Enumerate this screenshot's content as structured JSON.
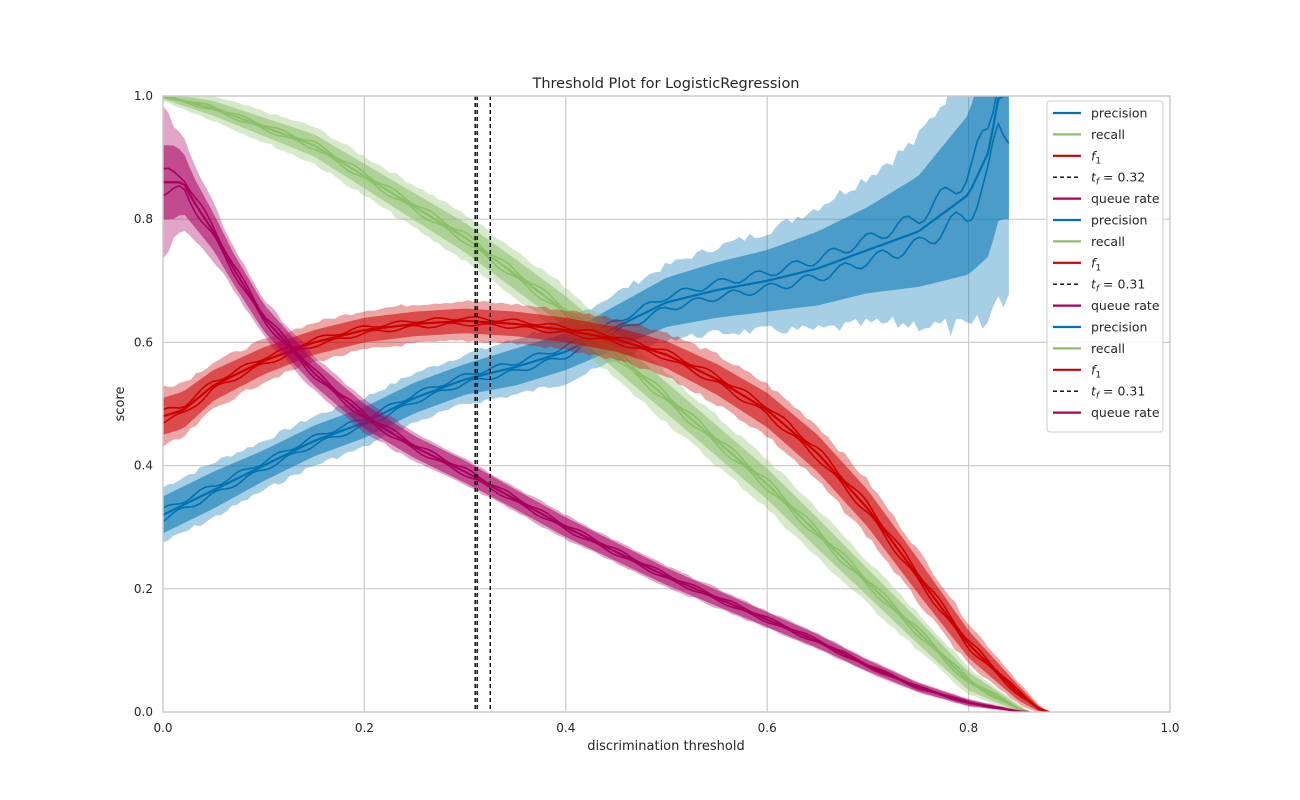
{
  "chart_data": {
    "type": "line",
    "title": "Threshold Plot for LogisticRegression",
    "xlabel": "discrimination threshold",
    "ylabel": "score",
    "xlim": [
      0.0,
      1.0
    ],
    "ylim": [
      0.0,
      1.0
    ],
    "grid": true,
    "legend_position": "top-right",
    "x_ticks": [
      "0.0",
      "0.2",
      "0.4",
      "0.6",
      "0.8",
      "1.0"
    ],
    "y_ticks": [
      "0.0",
      "0.2",
      "0.4",
      "0.6",
      "0.8",
      "1.0"
    ],
    "colors": {
      "precision": "#0072b2",
      "recall": "#8cc06a",
      "f1": "#cc0000",
      "queue_rate": "#a8005e",
      "threshold": "#000000"
    },
    "series": [
      {
        "name": "precision",
        "color": "#0072b2",
        "x": [
          0.0,
          0.05,
          0.1,
          0.15,
          0.2,
          0.25,
          0.3,
          0.35,
          0.4,
          0.45,
          0.5,
          0.55,
          0.6,
          0.65,
          0.7,
          0.75,
          0.8,
          0.82,
          0.83,
          0.84
        ],
        "y": [
          0.32,
          0.36,
          0.4,
          0.44,
          0.47,
          0.51,
          0.54,
          0.56,
          0.585,
          0.625,
          0.665,
          0.685,
          0.7,
          0.72,
          0.75,
          0.78,
          0.84,
          0.91,
          1.0,
          1.0
        ],
        "band_inner": [
          0.03,
          0.03,
          0.025,
          0.025,
          0.025,
          0.025,
          0.025,
          0.03,
          0.03,
          0.035,
          0.04,
          0.045,
          0.05,
          0.06,
          0.07,
          0.09,
          0.13,
          0.17,
          0.2,
          0.2
        ],
        "band_outer": [
          0.045,
          0.045,
          0.04,
          0.04,
          0.04,
          0.04,
          0.04,
          0.045,
          0.05,
          0.055,
          0.06,
          0.07,
          0.08,
          0.1,
          0.12,
          0.15,
          0.22,
          0.28,
          0.32,
          0.32
        ]
      },
      {
        "name": "recall",
        "color": "#8cc06a",
        "x": [
          0.0,
          0.05,
          0.1,
          0.15,
          0.2,
          0.25,
          0.3,
          0.35,
          0.4,
          0.45,
          0.5,
          0.55,
          0.6,
          0.65,
          0.7,
          0.75,
          0.8,
          0.85,
          0.86
        ],
        "y": [
          1.0,
          0.98,
          0.95,
          0.92,
          0.87,
          0.82,
          0.77,
          0.71,
          0.65,
          0.58,
          0.51,
          0.44,
          0.37,
          0.29,
          0.21,
          0.13,
          0.05,
          0.005,
          0.0
        ],
        "band_inner": [
          0.005,
          0.012,
          0.015,
          0.018,
          0.02,
          0.022,
          0.024,
          0.025,
          0.025,
          0.025,
          0.025,
          0.025,
          0.025,
          0.025,
          0.022,
          0.02,
          0.015,
          0.005,
          0.0
        ],
        "band_outer": [
          0.008,
          0.02,
          0.025,
          0.03,
          0.032,
          0.035,
          0.038,
          0.04,
          0.04,
          0.04,
          0.04,
          0.04,
          0.04,
          0.04,
          0.035,
          0.03,
          0.022,
          0.008,
          0.0
        ]
      },
      {
        "name": "f_1",
        "color": "#cc0000",
        "x": [
          0.0,
          0.02,
          0.05,
          0.1,
          0.15,
          0.2,
          0.25,
          0.3,
          0.35,
          0.4,
          0.45,
          0.5,
          0.55,
          0.6,
          0.65,
          0.7,
          0.75,
          0.8,
          0.85,
          0.87,
          0.88
        ],
        "y": [
          0.48,
          0.49,
          0.53,
          0.57,
          0.6,
          0.62,
          0.63,
          0.635,
          0.63,
          0.62,
          0.605,
          0.58,
          0.54,
          0.49,
          0.42,
          0.33,
          0.22,
          0.11,
          0.03,
          0.005,
          0.0
        ],
        "band_inner": [
          0.03,
          0.03,
          0.025,
          0.022,
          0.02,
          0.02,
          0.02,
          0.02,
          0.02,
          0.02,
          0.02,
          0.022,
          0.025,
          0.028,
          0.03,
          0.03,
          0.028,
          0.022,
          0.012,
          0.004,
          0.0
        ],
        "band_outer": [
          0.05,
          0.045,
          0.038,
          0.034,
          0.032,
          0.032,
          0.032,
          0.032,
          0.032,
          0.032,
          0.034,
          0.036,
          0.04,
          0.042,
          0.045,
          0.045,
          0.042,
          0.034,
          0.018,
          0.006,
          0.0
        ]
      },
      {
        "name": "queue rate",
        "color": "#a8005e",
        "x": [
          0.0,
          0.01,
          0.02,
          0.03,
          0.05,
          0.07,
          0.1,
          0.15,
          0.2,
          0.25,
          0.3,
          0.35,
          0.4,
          0.45,
          0.5,
          0.55,
          0.6,
          0.65,
          0.7,
          0.75,
          0.8,
          0.85,
          0.86
        ],
        "y": [
          0.86,
          0.86,
          0.86,
          0.83,
          0.78,
          0.72,
          0.64,
          0.55,
          0.48,
          0.43,
          0.39,
          0.345,
          0.3,
          0.26,
          0.22,
          0.185,
          0.15,
          0.115,
          0.075,
          0.04,
          0.015,
          0.001,
          0.0
        ],
        "band_inner": [
          0.06,
          0.06,
          0.05,
          0.04,
          0.03,
          0.025,
          0.022,
          0.02,
          0.02,
          0.018,
          0.018,
          0.016,
          0.016,
          0.015,
          0.014,
          0.013,
          0.012,
          0.011,
          0.009,
          0.007,
          0.005,
          0.001,
          0.0
        ],
        "band_outer": [
          0.12,
          0.1,
          0.08,
          0.06,
          0.045,
          0.035,
          0.03,
          0.028,
          0.026,
          0.024,
          0.022,
          0.02,
          0.02,
          0.018,
          0.017,
          0.016,
          0.014,
          0.013,
          0.011,
          0.009,
          0.006,
          0.002,
          0.0
        ]
      }
    ],
    "thresholds": [
      {
        "label": "t_f = 0.32",
        "x": 0.325
      },
      {
        "label": "t_f = 0.31",
        "x": 0.31
      },
      {
        "label": "t_f = 0.31",
        "x": 0.312
      }
    ],
    "legend_entries": [
      {
        "label": "precision",
        "series": "precision",
        "style": "solid"
      },
      {
        "label": "recall",
        "series": "recall",
        "style": "solid"
      },
      {
        "label": "f",
        "sub": "1",
        "series": "f_1",
        "style": "solid"
      },
      {
        "label": "t",
        "sub": "f",
        "suffix": " = 0.32",
        "series": "threshold",
        "style": "dashed"
      },
      {
        "label": "queue rate",
        "series": "queue rate",
        "style": "solid"
      },
      {
        "label": "precision",
        "series": "precision",
        "style": "solid"
      },
      {
        "label": "recall",
        "series": "recall",
        "style": "solid"
      },
      {
        "label": "f",
        "sub": "1",
        "series": "f_1",
        "style": "solid"
      },
      {
        "label": "t",
        "sub": "f",
        "suffix": " = 0.31",
        "series": "threshold",
        "style": "dashed"
      },
      {
        "label": "queue rate",
        "series": "queue rate",
        "style": "solid"
      },
      {
        "label": "precision",
        "series": "precision",
        "style": "solid"
      },
      {
        "label": "recall",
        "series": "recall",
        "style": "solid"
      },
      {
        "label": "f",
        "sub": "1",
        "series": "f_1",
        "style": "solid"
      },
      {
        "label": "t",
        "sub": "f",
        "suffix": " = 0.31",
        "series": "threshold",
        "style": "dashed"
      },
      {
        "label": "queue rate",
        "series": "queue rate",
        "style": "solid"
      }
    ]
  }
}
